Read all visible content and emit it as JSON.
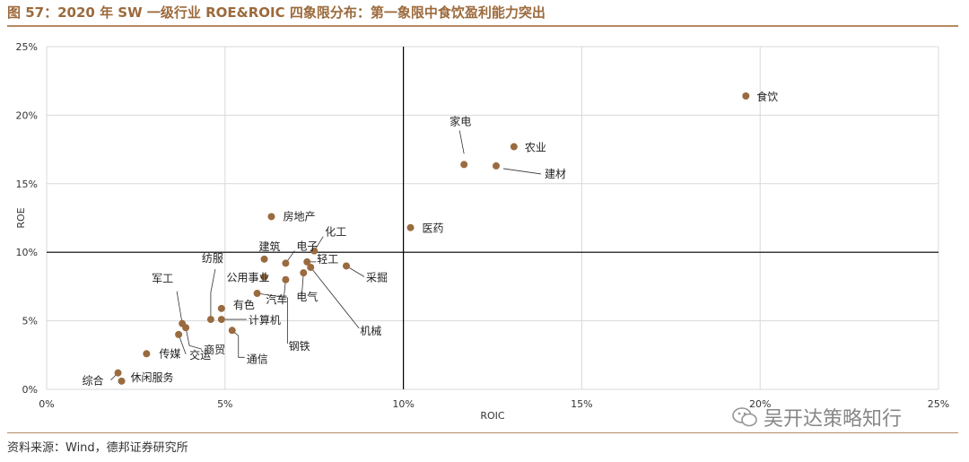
{
  "title": "图 57：2020 年 SW 一级行业 ROE&ROIC 四象限分布：第一象限中食饮盈利能力突出",
  "source": "资料来源：Wind，德邦证券研究所",
  "watermark": "吴开达策略知行",
  "colors": {
    "point": "#9a6b3f",
    "title": "#9c6a3c",
    "rule": "#b48a62",
    "grid": "#d9d9d9",
    "axis": "#000000"
  },
  "chart_data": {
    "type": "scatter",
    "xlabel": "ROIC",
    "ylabel": "ROE",
    "xlim": [
      0,
      25
    ],
    "ylim": [
      0,
      25
    ],
    "xticks": [
      "0%",
      "5%",
      "10%",
      "15%",
      "20%",
      "25%"
    ],
    "yticks": [
      "0%",
      "5%",
      "10%",
      "15%",
      "20%",
      "25%"
    ],
    "grid": true,
    "quadrant_lines": {
      "x": 10,
      "y": 10
    },
    "points": [
      {
        "label": "食饮",
        "x": 19.6,
        "y": 21.4
      },
      {
        "label": "农业",
        "x": 13.1,
        "y": 17.7
      },
      {
        "label": "家电",
        "x": 11.7,
        "y": 16.4
      },
      {
        "label": "建材",
        "x": 12.6,
        "y": 16.3
      },
      {
        "label": "医药",
        "x": 10.2,
        "y": 11.8
      },
      {
        "label": "房地产",
        "x": 6.3,
        "y": 12.6
      },
      {
        "label": "化工",
        "x": 7.5,
        "y": 10.1
      },
      {
        "label": "电子",
        "x": 6.7,
        "y": 9.2
      },
      {
        "label": "建筑",
        "x": 6.1,
        "y": 9.5
      },
      {
        "label": "轻工",
        "x": 7.3,
        "y": 9.3
      },
      {
        "label": "采掘",
        "x": 8.4,
        "y": 9.0
      },
      {
        "label": "机械",
        "x": 7.4,
        "y": 8.9
      },
      {
        "label": "电气",
        "x": 7.2,
        "y": 8.5
      },
      {
        "label": "汽车",
        "x": 6.7,
        "y": 8.0
      },
      {
        "label": "公用事业",
        "x": 6.1,
        "y": 8.2
      },
      {
        "label": "钢铁",
        "x": 5.9,
        "y": 7.0
      },
      {
        "label": "纺服",
        "x": 4.6,
        "y": 5.1
      },
      {
        "label": "有色",
        "x": 4.9,
        "y": 5.9
      },
      {
        "label": "计算机",
        "x": 4.9,
        "y": 5.1
      },
      {
        "label": "通信",
        "x": 5.2,
        "y": 4.3
      },
      {
        "label": "军工",
        "x": 3.8,
        "y": 4.8
      },
      {
        "label": "商贸",
        "x": 3.9,
        "y": 4.5
      },
      {
        "label": "交运",
        "x": 3.7,
        "y": 4.0
      },
      {
        "label": "传媒",
        "x": 2.8,
        "y": 2.6
      },
      {
        "label": "综合",
        "x": 2.0,
        "y": 1.2
      },
      {
        "label": "休闲服务",
        "x": 2.1,
        "y": 0.6
      }
    ]
  }
}
